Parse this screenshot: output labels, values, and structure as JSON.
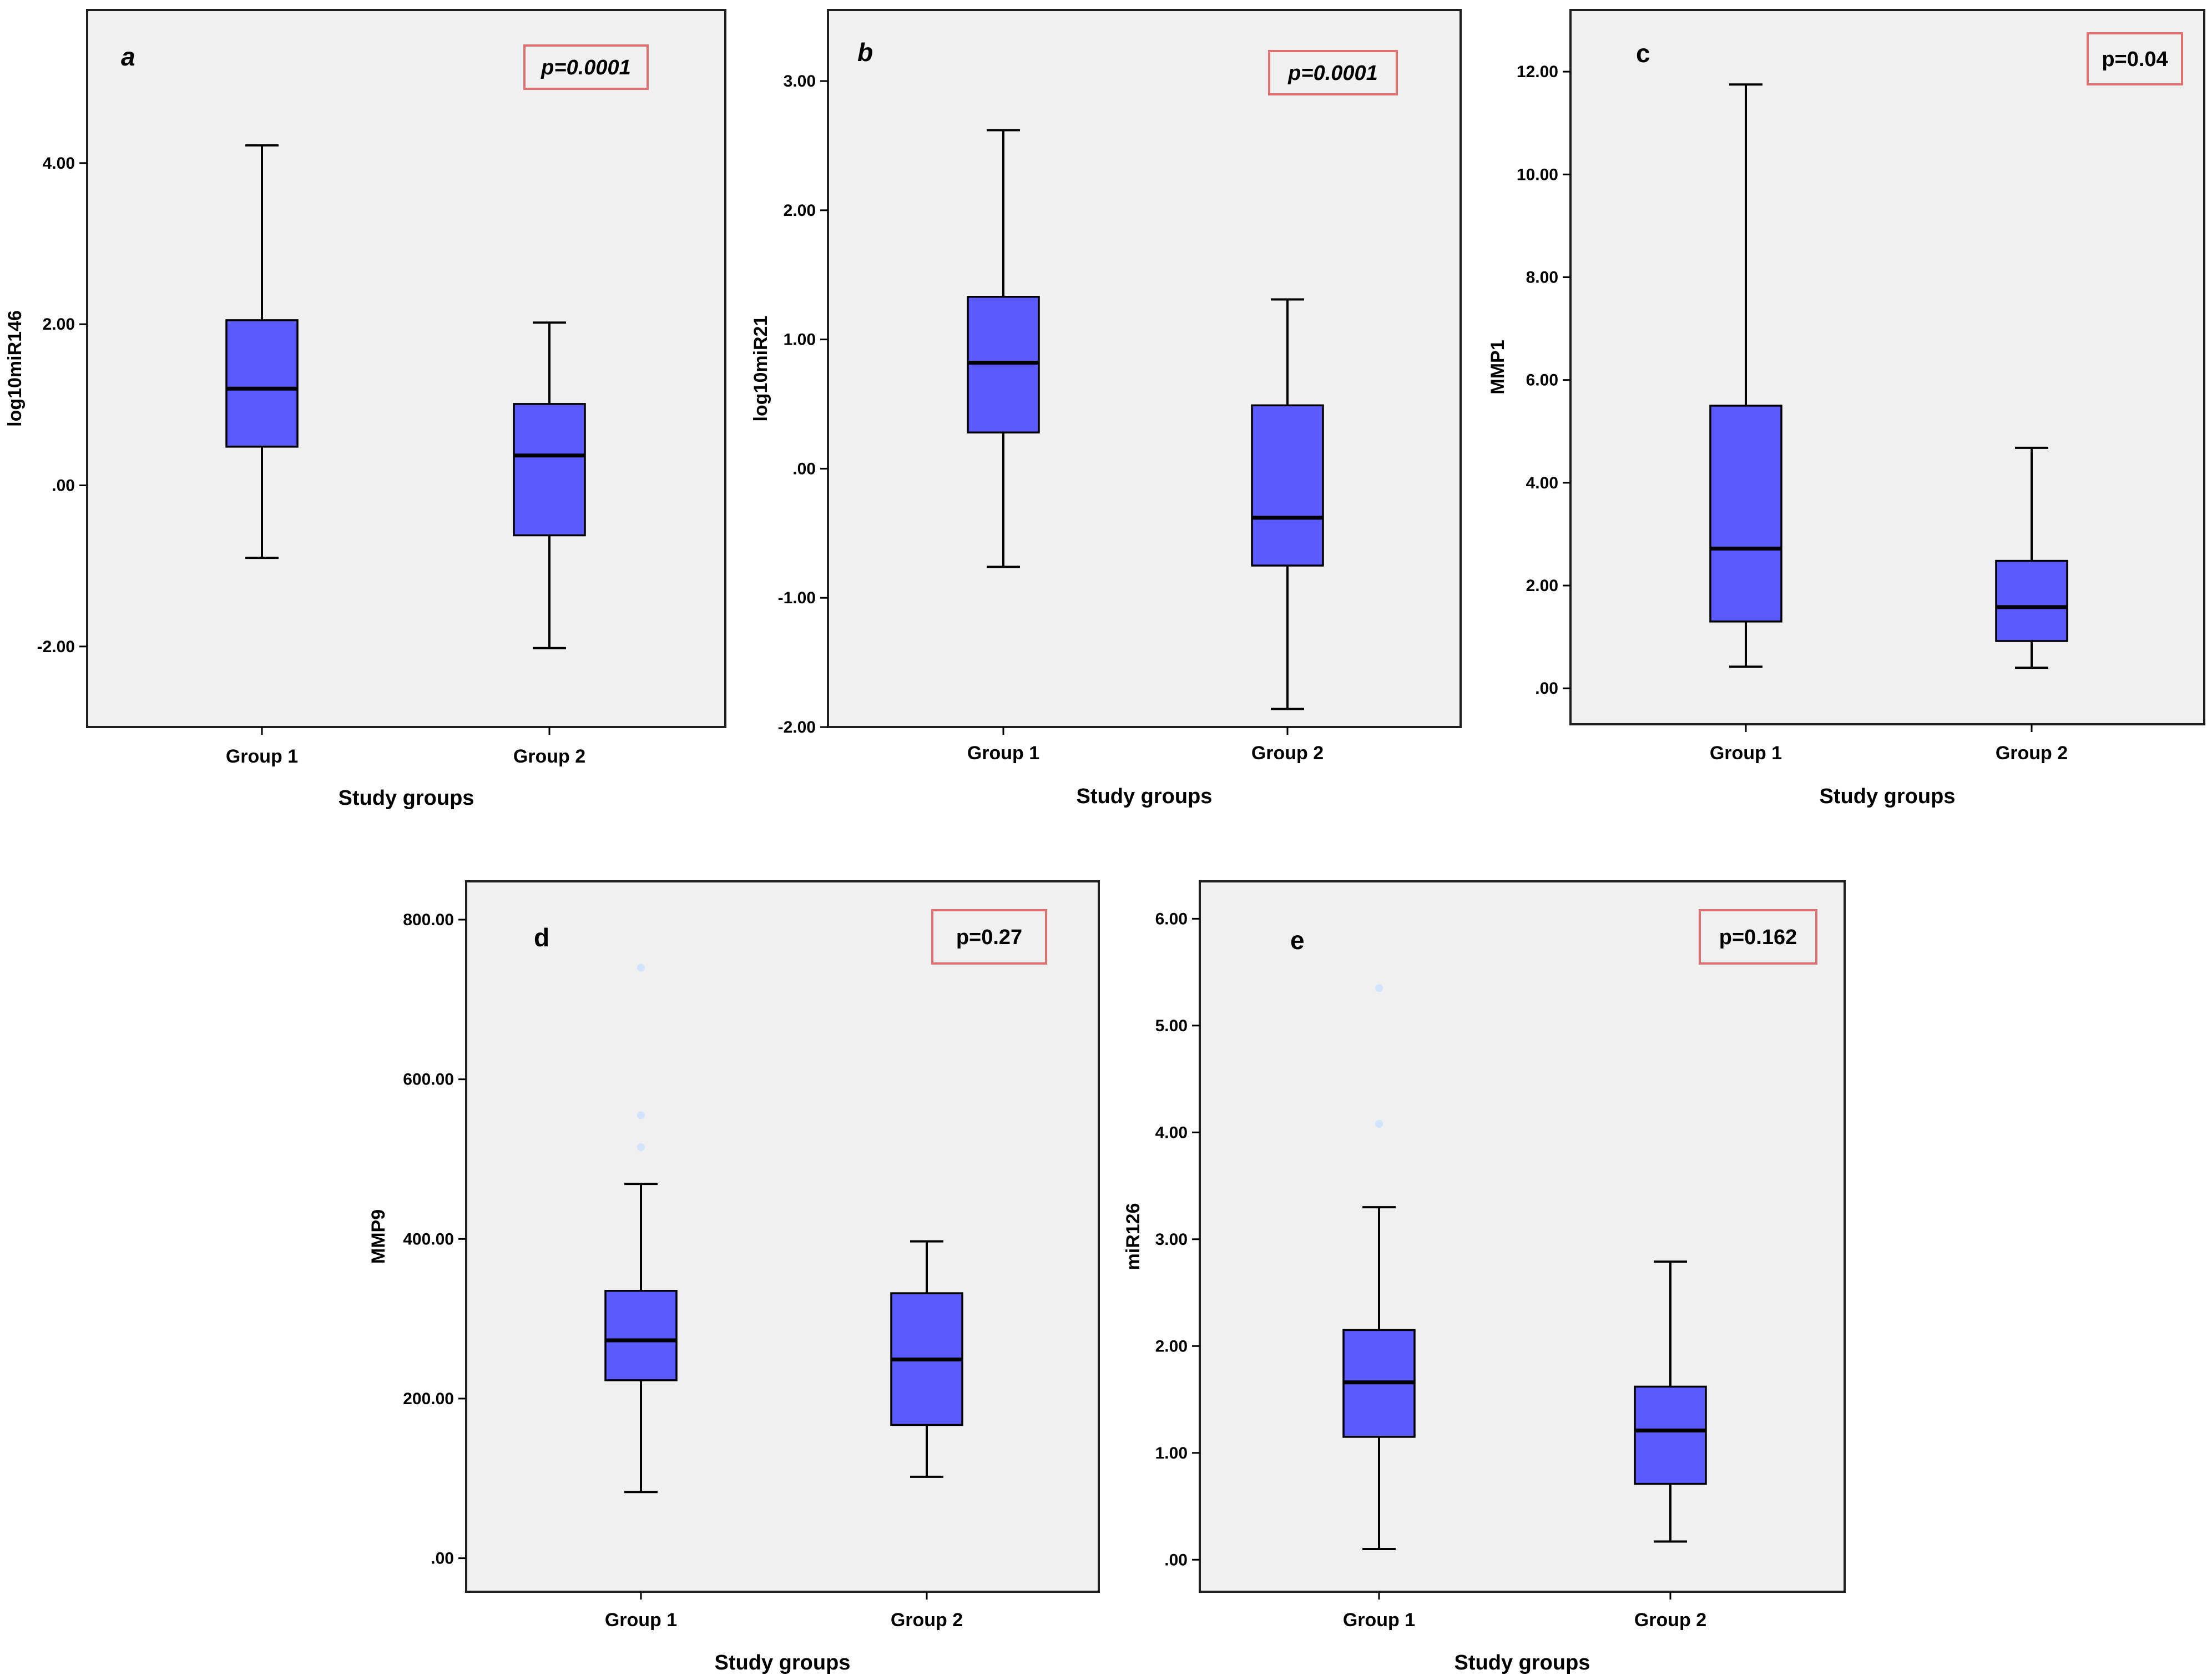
{
  "colors": {
    "box_fill": "#5a5aff",
    "plot_bg": "#f0f0f0",
    "pval_border": "#e07070",
    "outlier": "#d0e4ff"
  },
  "chart_data": [
    {
      "type": "box",
      "panel": "a",
      "panel_italic": true,
      "pvalue": "p=0.0001",
      "pvalue_italic": true,
      "xlabel": "Study groups",
      "ylabel": "log10miR146",
      "categories": [
        "Group 1",
        "Group 2"
      ],
      "yticks": [
        -2,
        0,
        2,
        4
      ],
      "ytick_labels": [
        "-2.00",
        ".00",
        "2.00",
        "4.00"
      ],
      "ylim": [
        -3.0,
        5.9
      ],
      "boxes": [
        {
          "min": -0.9,
          "q1": 0.48,
          "median": 1.2,
          "q3": 2.05,
          "max": 4.22,
          "outliers": []
        },
        {
          "min": -2.02,
          "q1": -0.62,
          "median": 0.37,
          "q3": 1.01,
          "max": 2.02,
          "outliers": []
        }
      ]
    },
    {
      "type": "box",
      "panel": "b",
      "panel_italic": true,
      "pvalue": "p=0.0001",
      "pvalue_italic": true,
      "xlabel": "Study groups",
      "ylabel": "log10miR21",
      "categories": [
        "Group 1",
        "Group 2"
      ],
      "yticks": [
        -2,
        -1,
        0,
        1,
        2,
        3
      ],
      "ytick_labels": [
        "-2.00",
        "-1.00",
        ".00",
        "1.00",
        "2.00",
        "3.00"
      ],
      "ylim": [
        -2.0,
        3.55
      ],
      "boxes": [
        {
          "min": -0.76,
          "q1": 0.28,
          "median": 0.82,
          "q3": 1.33,
          "max": 2.62,
          "outliers": []
        },
        {
          "min": -1.86,
          "q1": -0.75,
          "median": -0.38,
          "q3": 0.49,
          "max": 1.31,
          "outliers": []
        }
      ]
    },
    {
      "type": "box",
      "panel": "c",
      "panel_italic": false,
      "pvalue": "p=0.04",
      "pvalue_italic": false,
      "xlabel": "Study groups",
      "ylabel": "MMP1",
      "categories": [
        "Group 1",
        "Group 2"
      ],
      "yticks": [
        0,
        2,
        4,
        6,
        8,
        10,
        12
      ],
      "ytick_labels": [
        ".00",
        "2.00",
        "4.00",
        "6.00",
        "8.00",
        "10.00",
        "12.00"
      ],
      "ylim": [
        -0.7,
        13.2
      ],
      "boxes": [
        {
          "min": 0.42,
          "q1": 1.3,
          "median": 2.72,
          "q3": 5.5,
          "max": 11.75,
          "outliers": []
        },
        {
          "min": 0.4,
          "q1": 0.92,
          "median": 1.58,
          "q3": 2.48,
          "max": 4.68,
          "outliers": []
        }
      ]
    },
    {
      "type": "box",
      "panel": "d",
      "panel_italic": false,
      "pvalue": "p=0.27",
      "pvalue_italic": false,
      "xlabel": "Study groups",
      "ylabel": "MMP9",
      "categories": [
        "Group 1",
        "Group 2"
      ],
      "yticks": [
        0,
        200,
        400,
        600,
        800
      ],
      "ytick_labels": [
        ".00",
        "200.00",
        "400.00",
        "600.00",
        "800.00"
      ],
      "ylim": [
        -42,
        848
      ],
      "boxes": [
        {
          "min": 83,
          "q1": 223,
          "median": 273,
          "q3": 335,
          "max": 469,
          "outliers": [
            515,
            555,
            740
          ]
        },
        {
          "min": 102,
          "q1": 167,
          "median": 249,
          "q3": 332,
          "max": 397,
          "outliers": []
        }
      ]
    },
    {
      "type": "box",
      "panel": "e",
      "panel_italic": false,
      "pvalue": "p=0.162",
      "pvalue_italic": false,
      "xlabel": "Study groups",
      "ylabel": "miR126",
      "categories": [
        "Group 1",
        "Group 2"
      ],
      "yticks": [
        0,
        1,
        2,
        3,
        4,
        5,
        6
      ],
      "ytick_labels": [
        ".00",
        "1.00",
        "2.00",
        "3.00",
        "4.00",
        "5.00",
        "6.00"
      ],
      "ylim": [
        -0.3,
        6.35
      ],
      "boxes": [
        {
          "min": 0.1,
          "q1": 1.15,
          "median": 1.66,
          "q3": 2.15,
          "max": 3.3,
          "outliers": [
            4.08,
            5.35
          ]
        },
        {
          "min": 0.17,
          "q1": 0.71,
          "median": 1.21,
          "q3": 1.62,
          "max": 2.79,
          "outliers": []
        }
      ]
    }
  ]
}
